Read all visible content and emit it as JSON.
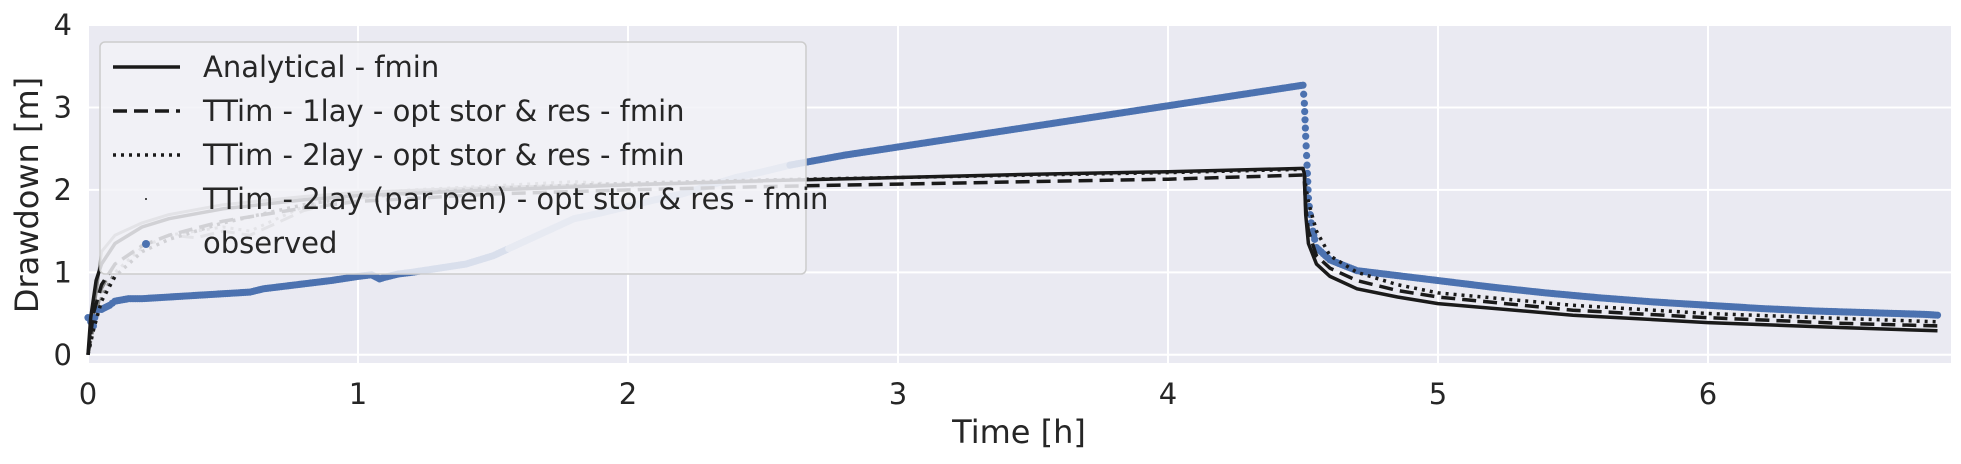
{
  "chart_data": {
    "type": "line",
    "title": "",
    "xlabel": "Time [h]",
    "ylabel": "Drawdown [m]",
    "xlim": [
      0,
      6.9
    ],
    "ylim": [
      -0.1,
      4.0
    ],
    "xticks": [
      0,
      1,
      2,
      3,
      4,
      5,
      6
    ],
    "yticks": [
      0,
      1,
      2,
      3,
      4
    ],
    "grid": true,
    "legend_position": "top-left",
    "colors": {
      "background": "#EAEAF2",
      "grid": "#FFFFFF",
      "observed": "#4C72B0",
      "observed_light": "#A6B8D8",
      "model": "#1A1A1A",
      "model_light": "#8C8C8C"
    },
    "series": [
      {
        "name": "Analytical - fmin",
        "style": "solid",
        "x": [
          0.0,
          0.01,
          0.03,
          0.05,
          0.1,
          0.2,
          0.3,
          0.5,
          0.8,
          1.0,
          1.5,
          2.0,
          2.5,
          3.0,
          3.5,
          4.0,
          4.5,
          4.505,
          4.51,
          4.52,
          4.55,
          4.6,
          4.7,
          4.85,
          5.0,
          5.5,
          6.0,
          6.5,
          6.85
        ],
        "y": [
          0.0,
          0.45,
          0.9,
          1.1,
          1.35,
          1.55,
          1.65,
          1.77,
          1.88,
          1.93,
          2.0,
          2.06,
          2.11,
          2.15,
          2.19,
          2.22,
          2.26,
          2.2,
          1.7,
          1.35,
          1.1,
          0.95,
          0.8,
          0.7,
          0.62,
          0.48,
          0.39,
          0.33,
          0.29
        ]
      },
      {
        "name": "TTim - 1lay - opt stor & res - fmin",
        "style": "dashed",
        "x": [
          0.0,
          0.02,
          0.05,
          0.1,
          0.2,
          0.3,
          0.5,
          0.8,
          1.0,
          1.5,
          2.0,
          2.5,
          3.0,
          3.5,
          4.0,
          4.5,
          4.505,
          4.51,
          4.52,
          4.55,
          4.6,
          4.7,
          4.85,
          5.0,
          5.5,
          6.0,
          6.5,
          6.85
        ],
        "y": [
          0.0,
          0.5,
          0.85,
          1.1,
          1.32,
          1.45,
          1.62,
          1.78,
          1.86,
          1.95,
          2.0,
          2.04,
          2.07,
          2.1,
          2.13,
          2.18,
          2.12,
          1.8,
          1.5,
          1.2,
          1.05,
          0.9,
          0.78,
          0.7,
          0.54,
          0.45,
          0.38,
          0.35
        ]
      },
      {
        "name": "TTim - 2lay - opt stor & res - fmin",
        "style": "dotted",
        "x": [
          0.0,
          0.02,
          0.05,
          0.1,
          0.2,
          0.3,
          0.5,
          0.8,
          1.0,
          1.5,
          2.0,
          2.5,
          3.0,
          3.5,
          4.0,
          4.5,
          4.505,
          4.51,
          4.52,
          4.55,
          4.6,
          4.7,
          4.85,
          5.0,
          5.5,
          6.0,
          6.5,
          6.85
        ],
        "y": [
          0.0,
          0.3,
          0.65,
          0.95,
          1.25,
          1.4,
          1.6,
          1.82,
          1.92,
          2.02,
          2.08,
          2.12,
          2.15,
          2.18,
          2.21,
          2.25,
          2.22,
          2.05,
          1.85,
          1.5,
          1.2,
          1.0,
          0.85,
          0.75,
          0.6,
          0.5,
          0.44,
          0.4
        ]
      },
      {
        "name": "TTim - 2lay (par pen) - opt stor & res - fmin",
        "style": "points",
        "x": [],
        "y": []
      },
      {
        "name": "observed",
        "style": "markers",
        "x": [
          0.0,
          0.01,
          0.02,
          0.03,
          0.05,
          0.08,
          0.1,
          0.15,
          0.2,
          0.3,
          0.4,
          0.5,
          0.6,
          0.65,
          0.7,
          0.8,
          0.9,
          1.0,
          1.05,
          1.08,
          1.1,
          1.15,
          1.2,
          1.3,
          1.4,
          1.5,
          1.6,
          1.7,
          1.8,
          1.9,
          2.0,
          2.1,
          2.2,
          2.3,
          2.4,
          2.5,
          2.6,
          2.7,
          2.8,
          2.9,
          3.0,
          3.2,
          3.4,
          3.6,
          3.8,
          4.0,
          4.2,
          4.4,
          4.5,
          4.505,
          4.51,
          4.515,
          4.52,
          4.53,
          4.55,
          4.6,
          4.7,
          4.8,
          4.9,
          5.0,
          5.2,
          5.4,
          5.6,
          5.8,
          6.0,
          6.2,
          6.4,
          6.6,
          6.8,
          6.85
        ],
        "y": [
          0.45,
          0.4,
          0.35,
          0.55,
          0.55,
          0.6,
          0.65,
          0.68,
          0.68,
          0.7,
          0.72,
          0.74,
          0.76,
          0.8,
          0.82,
          0.86,
          0.9,
          0.95,
          0.97,
          0.92,
          0.94,
          0.98,
          1.0,
          1.05,
          1.1,
          1.2,
          1.35,
          1.5,
          1.65,
          1.72,
          1.8,
          1.88,
          1.95,
          2.05,
          2.15,
          2.22,
          2.3,
          2.36,
          2.42,
          2.47,
          2.52,
          2.62,
          2.72,
          2.82,
          2.92,
          3.02,
          3.12,
          3.22,
          3.27,
          3.05,
          2.65,
          2.3,
          1.9,
          1.6,
          1.3,
          1.15,
          1.02,
          0.98,
          0.94,
          0.9,
          0.82,
          0.75,
          0.69,
          0.64,
          0.6,
          0.56,
          0.53,
          0.51,
          0.49,
          0.48
        ]
      },
      {
        "name": "",
        "style": "solid-light",
        "x": [
          0.0,
          0.05,
          0.1,
          0.2,
          0.3,
          0.5,
          0.8,
          1.0,
          1.5,
          2.0,
          2.5
        ],
        "y": [
          0.0,
          1.25,
          1.45,
          1.6,
          1.7,
          1.82,
          1.92,
          1.97,
          2.03,
          2.07,
          2.1
        ]
      },
      {
        "name": "",
        "style": "dashed-light",
        "x": [
          0.0,
          0.05,
          0.1,
          0.2,
          0.3,
          0.4,
          0.5,
          0.6,
          0.7,
          0.8,
          1.0,
          1.2,
          1.5,
          1.8,
          2.0,
          2.3
        ],
        "y": [
          0.0,
          0.8,
          1.1,
          1.33,
          1.45,
          1.42,
          1.5,
          1.45,
          1.6,
          1.75,
          1.9,
          1.95,
          2.0,
          2.05,
          2.07,
          2.09
        ]
      },
      {
        "name": "",
        "style": "dotted-light",
        "x": [
          0.0,
          0.05,
          0.1,
          0.2,
          0.3,
          0.4,
          0.5,
          0.6,
          0.7,
          0.8,
          1.0,
          1.2,
          1.5,
          1.8,
          1.9,
          2.0,
          2.3
        ],
        "y": [
          0.0,
          0.7,
          1.0,
          1.3,
          1.45,
          1.5,
          1.55,
          1.5,
          1.65,
          1.8,
          1.95,
          2.0,
          2.05,
          2.1,
          2.08,
          2.05,
          2.1
        ]
      }
    ]
  }
}
